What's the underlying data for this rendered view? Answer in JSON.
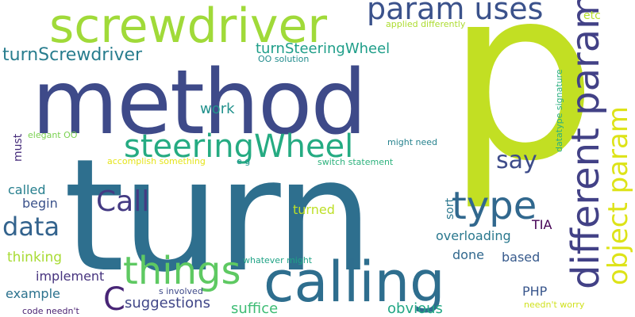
{
  "words": [
    {
      "text": "turn",
      "color": "#2e6f8e"
    },
    {
      "text": "p",
      "color": "#c2df23"
    },
    {
      "text": "method",
      "color": "#3e4a89"
    },
    {
      "text": "calling",
      "color": "#2e6e8e"
    },
    {
      "text": "screwdriver",
      "color": "#a0da39"
    },
    {
      "text": "different param",
      "color": "#424186"
    },
    {
      "text": "object param",
      "color": "#dde318"
    },
    {
      "text": "param uses",
      "color": "#3b528b"
    },
    {
      "text": "things",
      "color": "#5ec962"
    },
    {
      "text": "steeringWheel",
      "color": "#25ab82"
    },
    {
      "text": "type",
      "color": "#31688e"
    },
    {
      "text": "Call",
      "color": "#443a83"
    },
    {
      "text": "data",
      "color": "#33638d"
    },
    {
      "text": "C",
      "color": "#482576"
    },
    {
      "text": "say",
      "color": "#3e4c8a"
    },
    {
      "text": "turnScrewdriver",
      "color": "#287d8e"
    },
    {
      "text": "turnSteeringWheel",
      "color": "#1f9e89"
    },
    {
      "text": "work",
      "color": "#21918c"
    },
    {
      "text": "etc",
      "color": "#b5de2b"
    },
    {
      "text": "must",
      "color": "#472d7b"
    },
    {
      "text": "called",
      "color": "#277f8e"
    },
    {
      "text": "begin",
      "color": "#3b528b"
    },
    {
      "text": "thinking",
      "color": "#a8db34"
    },
    {
      "text": "implement",
      "color": "#46337e"
    },
    {
      "text": "example",
      "color": "#2c728e"
    },
    {
      "text": "suggestions",
      "color": "#404688"
    },
    {
      "text": "suffice",
      "color": "#3dbc74"
    },
    {
      "text": "obvious",
      "color": "#22a785"
    },
    {
      "text": "overloading",
      "color": "#2a788e"
    },
    {
      "text": "done",
      "color": "#31688e"
    },
    {
      "text": "based",
      "color": "#375a8c"
    },
    {
      "text": "PHP",
      "color": "#39568c"
    },
    {
      "text": "TIA",
      "color": "#440154"
    },
    {
      "text": "sort",
      "color": "#2a768e"
    },
    {
      "text": "turned",
      "color": "#bddf26"
    },
    {
      "text": "applied differently",
      "color": "#addc30"
    },
    {
      "text": "OO solution",
      "color": "#228c8d"
    },
    {
      "text": "datatype signature",
      "color": "#29af7f"
    },
    {
      "text": "elegant OO",
      "color": "#7ad151"
    },
    {
      "text": "might need",
      "color": "#26828e"
    },
    {
      "text": "accomplish something",
      "color": "#e5e419"
    },
    {
      "text": "e g",
      "color": "#1f968b"
    },
    {
      "text": "switch statement",
      "color": "#2db27d"
    },
    {
      "text": "whatever might",
      "color": "#20a386"
    },
    {
      "text": "s involved",
      "color": "#3e4989"
    },
    {
      "text": "needn't worry",
      "color": "#d0e11c"
    },
    {
      "text": "code needn't",
      "color": "#481f70"
    }
  ]
}
